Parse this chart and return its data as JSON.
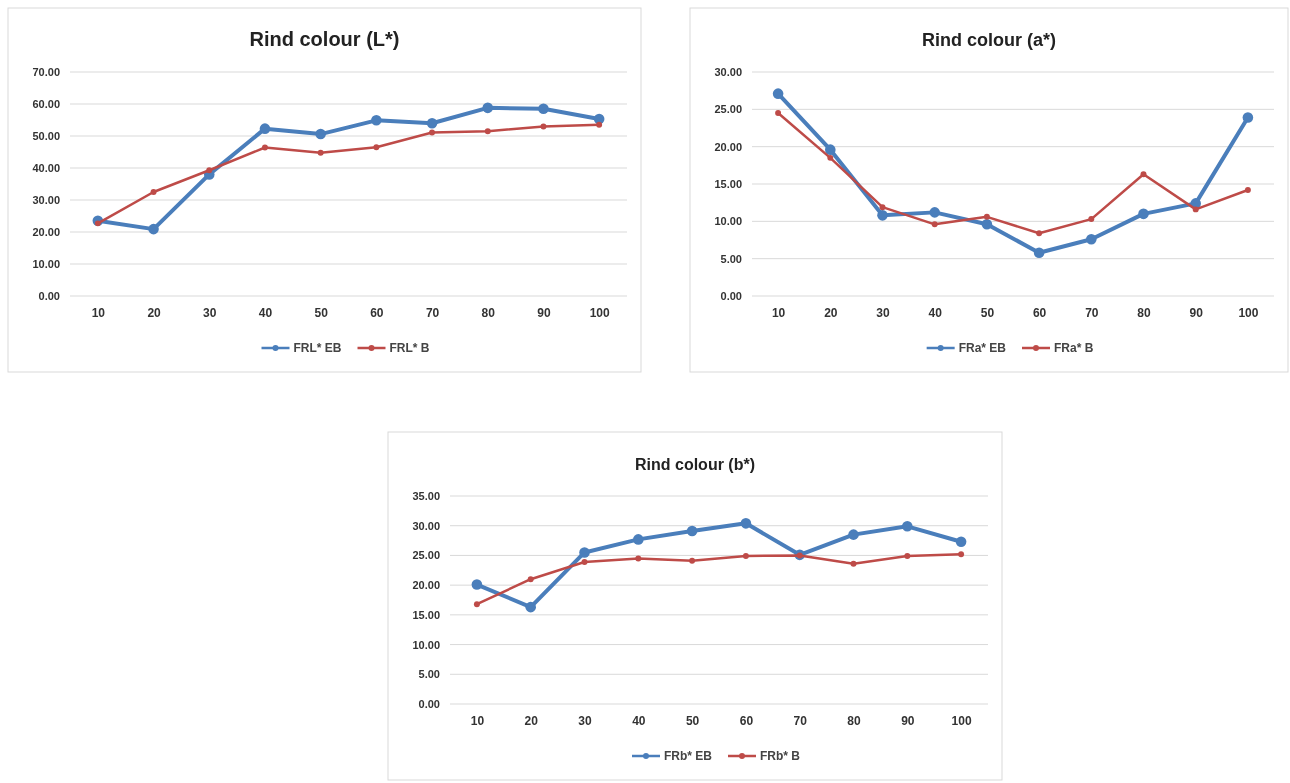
{
  "chart_data": [
    {
      "type": "line",
      "title": "Rind colour (L*)",
      "categories": [
        "10",
        "20",
        "30",
        "40",
        "50",
        "60",
        "70",
        "80",
        "90",
        "100"
      ],
      "ylim": [
        0,
        70
      ],
      "yticks": [
        {
          "value": 0,
          "label": "0.00"
        },
        {
          "value": 10,
          "label": "10.00"
        },
        {
          "value": 20,
          "label": "20.00"
        },
        {
          "value": 30,
          "label": "30.00"
        },
        {
          "value": 40,
          "label": "40.00"
        },
        {
          "value": 50,
          "label": "50.00"
        },
        {
          "value": 60,
          "label": "60.00"
        },
        {
          "value": 70,
          "label": "70.00"
        }
      ],
      "grid": "y",
      "legend": "bottom",
      "marker": "circle",
      "series": [
        {
          "name": "FRL* EB",
          "color": "#4a7ebb",
          "values": [
            23.5,
            20.9,
            38.0,
            52.3,
            50.6,
            54.9,
            54.0,
            58.8,
            58.5,
            55.3
          ]
        },
        {
          "name": "FRL* B",
          "color": "#be4b48",
          "values": [
            22.7,
            32.5,
            39.3,
            46.4,
            44.8,
            46.5,
            51.1,
            51.5,
            53.0,
            53.5
          ]
        }
      ]
    },
    {
      "type": "line",
      "title": "Rind colour (a*)",
      "categories": [
        "10",
        "20",
        "30",
        "40",
        "50",
        "60",
        "70",
        "80",
        "90",
        "100"
      ],
      "ylim": [
        0,
        30
      ],
      "yticks": [
        {
          "value": 0,
          "label": "0.00"
        },
        {
          "value": 5,
          "label": "5.00"
        },
        {
          "value": 10,
          "label": "10.00"
        },
        {
          "value": 15,
          "label": "15.00"
        },
        {
          "value": 20,
          "label": "20.00"
        },
        {
          "value": 25,
          "label": "25.00"
        },
        {
          "value": 30,
          "label": "30.00"
        }
      ],
      "grid": "y",
      "legend": "bottom",
      "marker": "circle",
      "series": [
        {
          "name": "FRa* EB",
          "color": "#4a7ebb",
          "values": [
            27.1,
            19.6,
            10.8,
            11.2,
            9.6,
            5.8,
            7.6,
            11.0,
            12.4,
            23.9
          ]
        },
        {
          "name": "FRa* B",
          "color": "#be4b48",
          "values": [
            24.5,
            18.5,
            11.9,
            9.6,
            10.6,
            8.4,
            10.3,
            16.3,
            11.6,
            14.2
          ]
        }
      ]
    },
    {
      "type": "line",
      "title": "Rind colour (b*)",
      "categories": [
        "10",
        "20",
        "30",
        "40",
        "50",
        "60",
        "70",
        "80",
        "90",
        "100"
      ],
      "ylim": [
        0,
        35
      ],
      "yticks": [
        {
          "value": 0,
          "label": "0.00"
        },
        {
          "value": 5,
          "label": "5.00"
        },
        {
          "value": 10,
          "label": "10.00"
        },
        {
          "value": 15,
          "label": "15.00"
        },
        {
          "value": 20,
          "label": "20.00"
        },
        {
          "value": 25,
          "label": "25.00"
        },
        {
          "value": 30,
          "label": "30.00"
        },
        {
          "value": 35,
          "label": "35.00"
        }
      ],
      "grid": "y",
      "legend": "bottom",
      "marker": "circle",
      "series": [
        {
          "name": "FRb* EB",
          "color": "#4a7ebb",
          "values": [
            20.1,
            16.3,
            25.5,
            27.7,
            29.1,
            30.4,
            25.1,
            28.5,
            29.9,
            27.3
          ]
        },
        {
          "name": "FRb* B",
          "color": "#be4b48",
          "values": [
            16.8,
            21.0,
            23.9,
            24.5,
            24.1,
            24.9,
            25.0,
            23.6,
            24.9,
            25.2
          ]
        }
      ]
    }
  ]
}
